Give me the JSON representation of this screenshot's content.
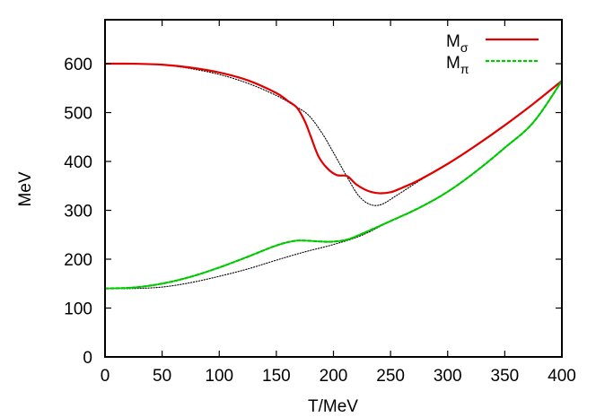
{
  "chart_data": {
    "type": "line",
    "xlabel": "T/MeV",
    "ylabel": "MeV",
    "xlim": [
      0,
      400
    ],
    "ylim": [
      0,
      690
    ],
    "xticks": [
      0,
      50,
      100,
      150,
      200,
      250,
      300,
      350,
      400
    ],
    "yticks": [
      0,
      100,
      200,
      300,
      400,
      500,
      600
    ],
    "grid": false,
    "legend_position": "top-right",
    "series": [
      {
        "name": "M_σ",
        "legend_main": "M",
        "legend_sub": "σ",
        "color": "#e00000",
        "style": "solid",
        "points": [
          [
            0,
            600
          ],
          [
            25,
            600
          ],
          [
            50,
            598
          ],
          [
            75,
            592
          ],
          [
            100,
            582
          ],
          [
            125,
            566
          ],
          [
            150,
            540
          ],
          [
            160,
            524
          ],
          [
            168,
            510
          ],
          [
            175,
            482
          ],
          [
            180,
            452
          ],
          [
            187,
            410
          ],
          [
            195,
            385
          ],
          [
            203,
            372
          ],
          [
            212,
            370
          ],
          [
            220,
            353
          ],
          [
            230,
            340
          ],
          [
            240,
            335
          ],
          [
            250,
            337
          ],
          [
            260,
            346
          ],
          [
            275,
            362
          ],
          [
            300,
            395
          ],
          [
            325,
            433
          ],
          [
            350,
            474
          ],
          [
            375,
            518
          ],
          [
            400,
            565
          ]
        ]
      },
      {
        "name": "M_π",
        "legend_main": "M",
        "legend_sub": "π",
        "color": "#00c800",
        "style": "dashed",
        "points": [
          [
            0,
            140
          ],
          [
            25,
            142
          ],
          [
            50,
            150
          ],
          [
            75,
            164
          ],
          [
            100,
            183
          ],
          [
            125,
            205
          ],
          [
            150,
            228
          ],
          [
            165,
            237
          ],
          [
            175,
            238
          ],
          [
            190,
            236
          ],
          [
            200,
            236
          ],
          [
            212,
            240
          ],
          [
            225,
            252
          ],
          [
            250,
            278
          ],
          [
            275,
            305
          ],
          [
            300,
            338
          ],
          [
            325,
            380
          ],
          [
            350,
            428
          ],
          [
            375,
            480
          ],
          [
            400,
            565
          ]
        ]
      },
      {
        "name": "",
        "color": "#000000",
        "style": "dotted",
        "points": [
          [
            0,
            600
          ],
          [
            25,
            600
          ],
          [
            50,
            598
          ],
          [
            75,
            590
          ],
          [
            100,
            578
          ],
          [
            125,
            560
          ],
          [
            150,
            535
          ],
          [
            165,
            515
          ],
          [
            178,
            495
          ],
          [
            190,
            458
          ],
          [
            200,
            418
          ],
          [
            212,
            368
          ],
          [
            222,
            330
          ],
          [
            232,
            312
          ],
          [
            242,
            312
          ],
          [
            255,
            330
          ],
          [
            275,
            360
          ],
          [
            300,
            395
          ],
          [
            325,
            433
          ],
          [
            350,
            474
          ],
          [
            375,
            518
          ],
          [
            400,
            565
          ]
        ]
      },
      {
        "name": "",
        "color": "#000000",
        "style": "dotted",
        "points": [
          [
            0,
            140
          ],
          [
            25,
            140
          ],
          [
            50,
            143
          ],
          [
            75,
            152
          ],
          [
            100,
            165
          ],
          [
            125,
            180
          ],
          [
            150,
            198
          ],
          [
            175,
            215
          ],
          [
            200,
            230
          ],
          [
            225,
            249
          ],
          [
            250,
            278
          ],
          [
            275,
            305
          ],
          [
            300,
            338
          ],
          [
            325,
            380
          ],
          [
            350,
            428
          ],
          [
            375,
            480
          ],
          [
            400,
            565
          ]
        ]
      }
    ]
  }
}
